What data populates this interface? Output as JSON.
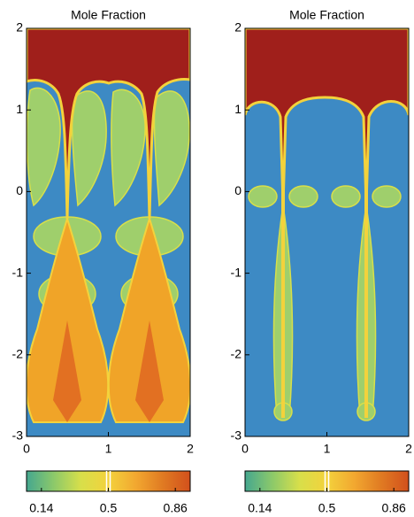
{
  "chart_data": [
    {
      "type": "heatmap",
      "title": "Mole Fraction",
      "xlim": [
        0,
        2
      ],
      "ylim": [
        -3,
        2
      ],
      "xticks": [
        0,
        1,
        2
      ],
      "yticks": [
        -3,
        -2,
        -1,
        0,
        1,
        2
      ],
      "colorbar_lim": [
        0.06,
        0.94
      ],
      "colorbar_ticks": [
        0.14,
        0.5,
        0.86
      ],
      "colormap": [
        "#45a78f",
        "#8cc96a",
        "#d8df4a",
        "#f3d23c",
        "#f2a830",
        "#e07a22",
        "#d2501c"
      ]
    },
    {
      "type": "heatmap",
      "title": "Mole Fraction",
      "xlim": [
        0,
        2
      ],
      "ylim": [
        -3,
        2
      ],
      "xticks": [
        0,
        1,
        2
      ],
      "yticks": [
        -3,
        -2,
        -1,
        0,
        1,
        2
      ],
      "colorbar_lim": [
        0.06,
        0.94
      ],
      "colorbar_ticks": [
        0.14,
        0.5,
        0.86
      ],
      "colormap": [
        "#45a78f",
        "#8cc96a",
        "#d8df4a",
        "#f3d23c",
        "#f2a830",
        "#e07a22",
        "#d2501c"
      ]
    }
  ]
}
